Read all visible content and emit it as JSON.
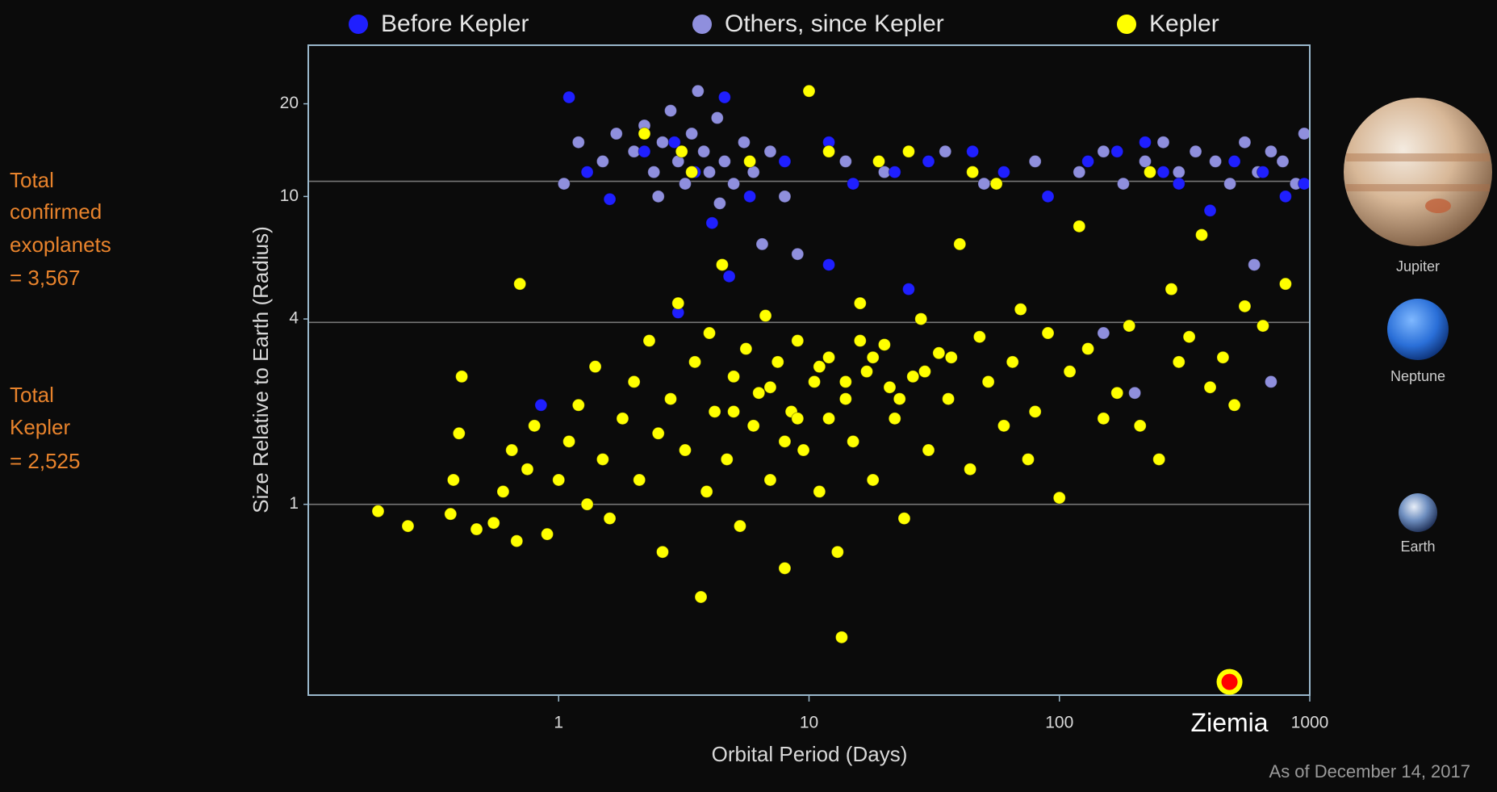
{
  "chart_data": {
    "type": "scatter",
    "xlabel": "Orbital Period (Days)",
    "ylabel": "Size Relative to Earth (Radius)",
    "xlog": true,
    "ylog": true,
    "legend": "top",
    "xlim": [
      0.1,
      1000
    ],
    "ylim": [
      0.24,
      31
    ],
    "xticks": [
      1,
      10,
      100,
      1000
    ],
    "yticks": [
      1,
      4,
      10,
      20
    ],
    "reference_lines": [
      {
        "label": "Jupiter",
        "value": 11.2,
        "color": "#777777"
      },
      {
        "label": "Neptune",
        "value": 3.9,
        "color": "#777777"
      },
      {
        "label": "Earth",
        "value": 1,
        "color": "#777777"
      }
    ],
    "annotation": {
      "text": "Ziemia",
      "x": 478,
      "y": 0.265
    },
    "series": [
      {
        "name": "Before Kepler",
        "color": "#1f1fff",
        "x": [
          1.1,
          1.3,
          1.6,
          2.2,
          2.9,
          3.5,
          4.1,
          4.6,
          5.8,
          8,
          12,
          15,
          22,
          30,
          45,
          60,
          90,
          130,
          170,
          220,
          260,
          300,
          400,
          500,
          650,
          800,
          950,
          3,
          0.85,
          4.8,
          12,
          25
        ],
        "values": [
          21,
          12,
          9.8,
          14,
          15,
          12,
          8.2,
          21,
          10,
          13,
          15,
          11,
          12,
          13,
          14,
          12,
          10,
          13,
          14,
          15,
          12,
          11,
          9,
          13,
          12,
          10,
          11,
          4.2,
          2.1,
          5.5,
          6,
          5
        ]
      },
      {
        "name": "Others, since Kepler",
        "color": "#8f8fdd",
        "x": [
          1.2,
          1.5,
          1.7,
          2,
          2.2,
          2.4,
          2.6,
          2.8,
          3,
          3.2,
          3.4,
          3.6,
          3.8,
          4,
          4.3,
          4.6,
          5,
          5.5,
          6,
          7,
          8,
          1.05,
          2.5,
          4.4,
          6.5,
          9,
          14,
          20,
          35,
          50,
          80,
          120,
          150,
          180,
          220,
          260,
          300,
          350,
          420,
          480,
          550,
          620,
          700,
          780,
          880,
          950,
          600,
          700,
          200,
          150
        ],
        "values": [
          15,
          13,
          16,
          14,
          17,
          12,
          15,
          19,
          13,
          11,
          16,
          22,
          14,
          12,
          18,
          13,
          11,
          15,
          12,
          14,
          10,
          11,
          10,
          9.5,
          7,
          6.5,
          13,
          12,
          14,
          11,
          13,
          12,
          14,
          11,
          13,
          15,
          12,
          14,
          13,
          11,
          15,
          12,
          14,
          13,
          11,
          16,
          6,
          2.5,
          2.3,
          3.6
        ]
      },
      {
        "name": "Kepler",
        "color": "#ffff00",
        "x": [
          0.19,
          0.25,
          0.37,
          0.38,
          0.4,
          0.41,
          0.47,
          0.55,
          0.6,
          0.65,
          0.68,
          0.7,
          0.75,
          0.8,
          0.9,
          1.0,
          1.1,
          1.2,
          1.3,
          1.4,
          1.5,
          1.6,
          1.8,
          2.0,
          2.1,
          2.3,
          2.5,
          2.6,
          2.8,
          3.0,
          3.2,
          3.4,
          3.5,
          3.7,
          3.9,
          4.0,
          4.2,
          4.5,
          4.7,
          5.0,
          5.3,
          5.6,
          6.0,
          6.3,
          6.7,
          7.0,
          7.5,
          8.0,
          8.5,
          9.0,
          9.5,
          10,
          10.5,
          11,
          12,
          13,
          13.5,
          14,
          15,
          16,
          17,
          18,
          19,
          20,
          22,
          24,
          26,
          28,
          30,
          33,
          36,
          40,
          44,
          48,
          52,
          56,
          60,
          65,
          70,
          75,
          80,
          90,
          100,
          110,
          120,
          130,
          150,
          170,
          190,
          210,
          230,
          250,
          280,
          300,
          330,
          370,
          400,
          450,
          500,
          550,
          650,
          800,
          3.1,
          2.2,
          5.8,
          25,
          12,
          45,
          5,
          7,
          9,
          11,
          14,
          18,
          23,
          29,
          37,
          8,
          12,
          16,
          21
        ],
        "values": [
          0.95,
          0.85,
          0.93,
          1.2,
          1.7,
          2.6,
          0.83,
          0.87,
          1.1,
          1.5,
          0.76,
          5.2,
          1.3,
          1.8,
          0.8,
          1.2,
          1.6,
          2.1,
          1.0,
          2.8,
          1.4,
          0.9,
          1.9,
          2.5,
          1.2,
          3.4,
          1.7,
          0.7,
          2.2,
          4.5,
          1.5,
          12,
          2.9,
          0.5,
          1.1,
          3.6,
          2.0,
          6,
          1.4,
          2.6,
          0.85,
          3.2,
          1.8,
          2.3,
          4.1,
          1.2,
          2.9,
          0.62,
          2.0,
          3.4,
          1.5,
          22,
          2.5,
          1.1,
          3.0,
          0.7,
          0.37,
          2.2,
          1.6,
          4.5,
          2.7,
          1.2,
          13,
          3.3,
          1.9,
          0.9,
          2.6,
          4.0,
          1.5,
          3.1,
          2.2,
          7,
          1.3,
          3.5,
          2.5,
          11,
          1.8,
          2.9,
          4.3,
          1.4,
          2.0,
          3.6,
          1.05,
          2.7,
          8,
          3.2,
          1.9,
          2.3,
          3.8,
          1.8,
          12,
          1.4,
          5,
          2.9,
          3.5,
          7.5,
          2.4,
          3.0,
          2.1,
          4.4,
          3.8,
          5.2,
          14,
          16,
          13,
          14,
          14,
          12,
          2.0,
          2.4,
          1.9,
          2.8,
          2.5,
          3.0,
          2.2,
          2.7,
          3.0,
          1.6,
          1.9,
          3.4,
          2.4
        ]
      }
    ]
  },
  "side_notes": [
    [
      "Total",
      "confirmed",
      "exoplanets",
      " = 3,567"
    ],
    [
      "Total",
      "Kepler",
      "= 2,525"
    ]
  ],
  "footer": "As of December 14, 2017"
}
